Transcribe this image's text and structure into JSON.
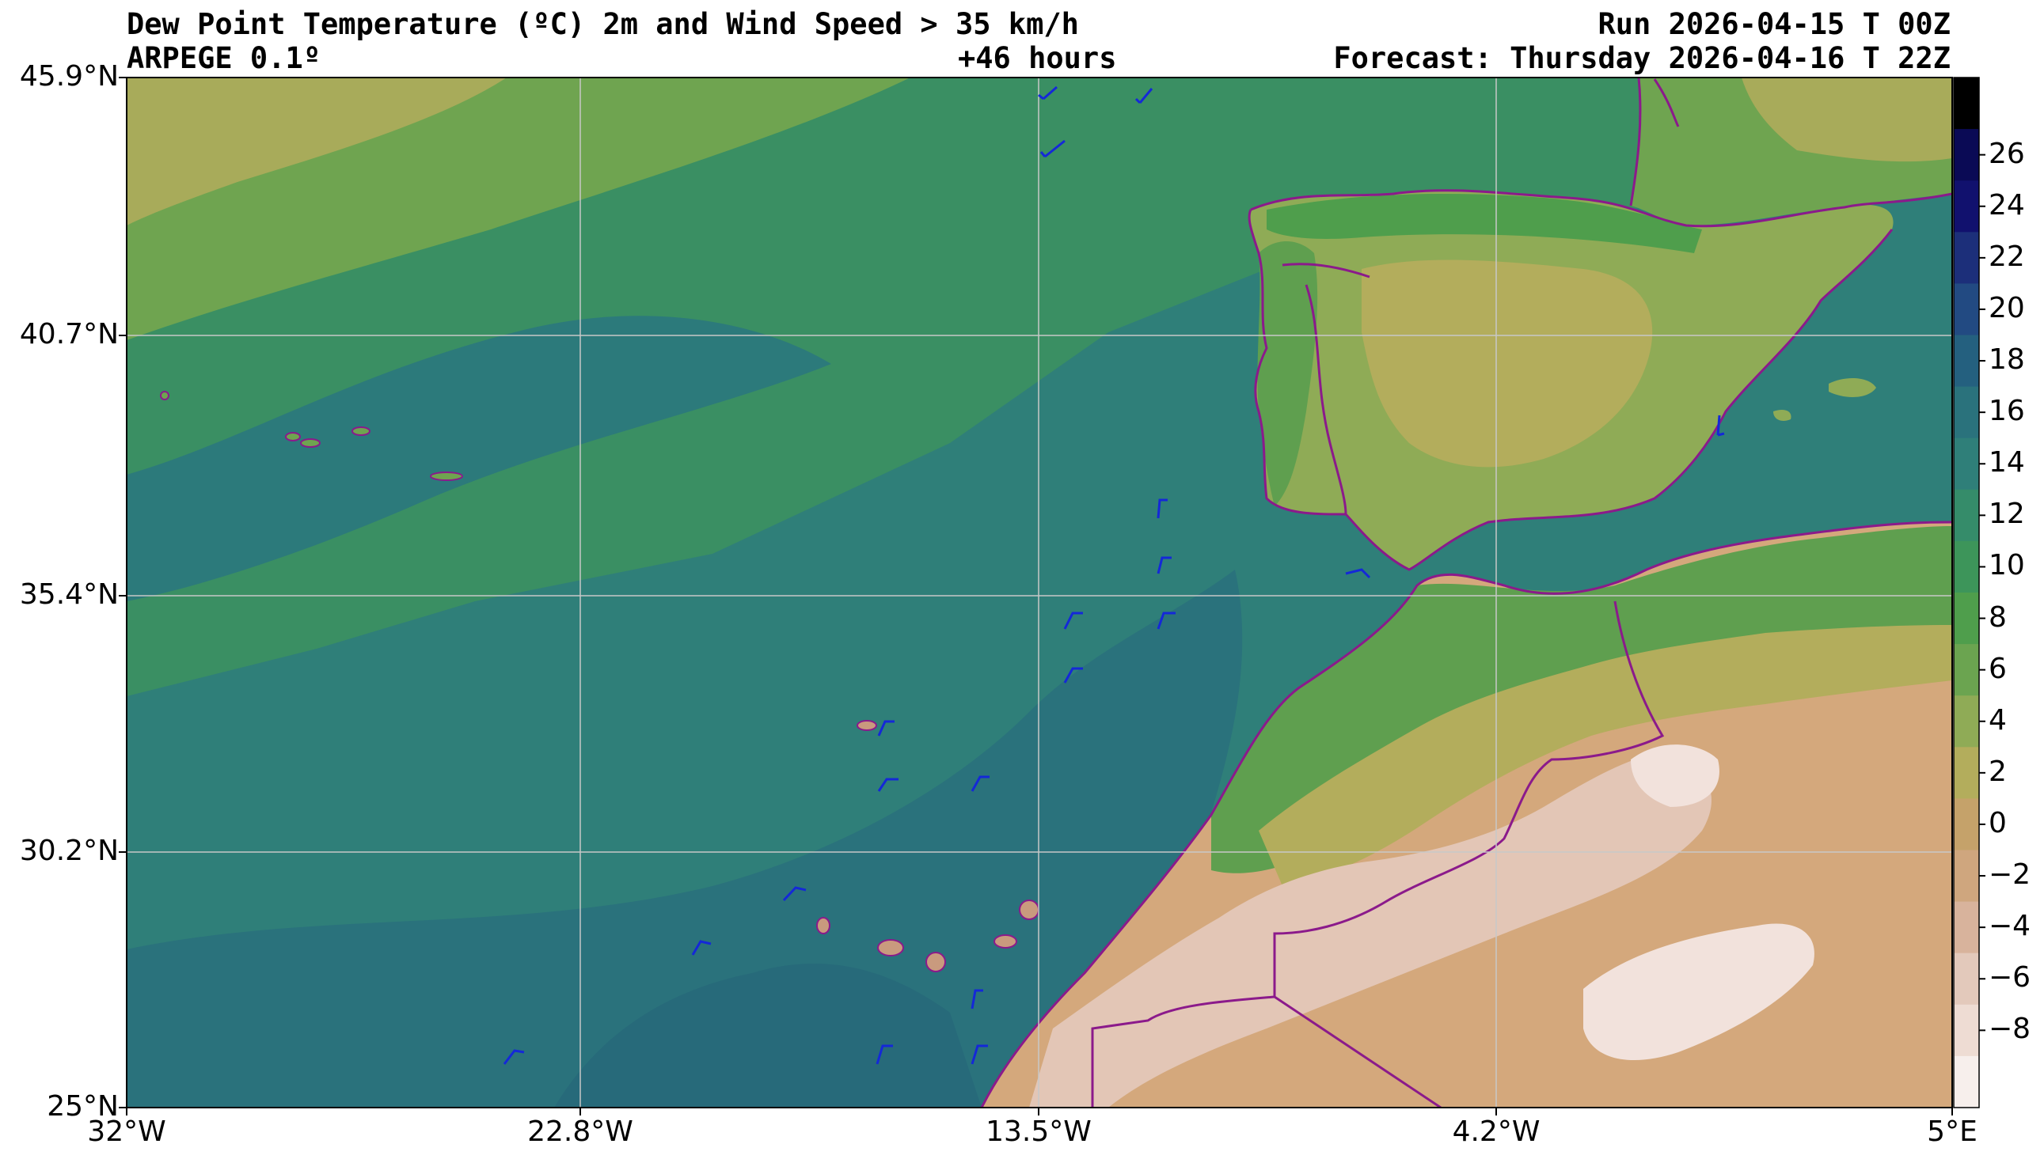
{
  "header": {
    "title": "Dew Point Temperature (ºC) 2m and Wind Speed > 35 km/h",
    "model": "ARPEGE 0.1º",
    "lead": "+46 hours",
    "run": "Run 2026-04-15 T 00Z",
    "forecast": "Forecast: Thursday 2026-04-16 T 22Z"
  },
  "axes": {
    "lat_labels": [
      "45.9°N",
      "40.7°N",
      "35.4°N",
      "30.2°N",
      "25°N"
    ],
    "lon_labels": [
      "32°W",
      "22.8°W",
      "13.5°W",
      "4.2°W",
      "5°E"
    ]
  },
  "colorbar": {
    "ticks": [
      "26",
      "24",
      "22",
      "20",
      "18",
      "16",
      "14",
      "12",
      "10",
      "8",
      "6",
      "4",
      "2",
      "0",
      "−2",
      "−4",
      "−6",
      "−8"
    ],
    "colors": [
      "#000000",
      "#0a0a55",
      "#11116e",
      "#1c2f7a",
      "#224a82",
      "#24607f",
      "#2a727c",
      "#2f7f79",
      "#358c6a",
      "#3d955a",
      "#4f9e4c",
      "#6ba450",
      "#8fab56",
      "#b3ad5c",
      "#c5a26a",
      "#cfa67e",
      "#d8b39c",
      "#e3c9bb",
      "#eedcd3",
      "#f7efec"
    ]
  },
  "map": {
    "colors": {
      "ocean_deep": "#2a727c",
      "ocean_mid": "#2f7f79",
      "ocean_light": "#358c6a",
      "green": "#3d955a",
      "green_light": "#5f9f4f",
      "olive": "#8fab56",
      "khaki": "#b3ad5c",
      "desert": "#d4a87c",
      "desert_light": "#e3c6b6",
      "border": "#8b1a8b",
      "barb": "#1428d8"
    }
  }
}
